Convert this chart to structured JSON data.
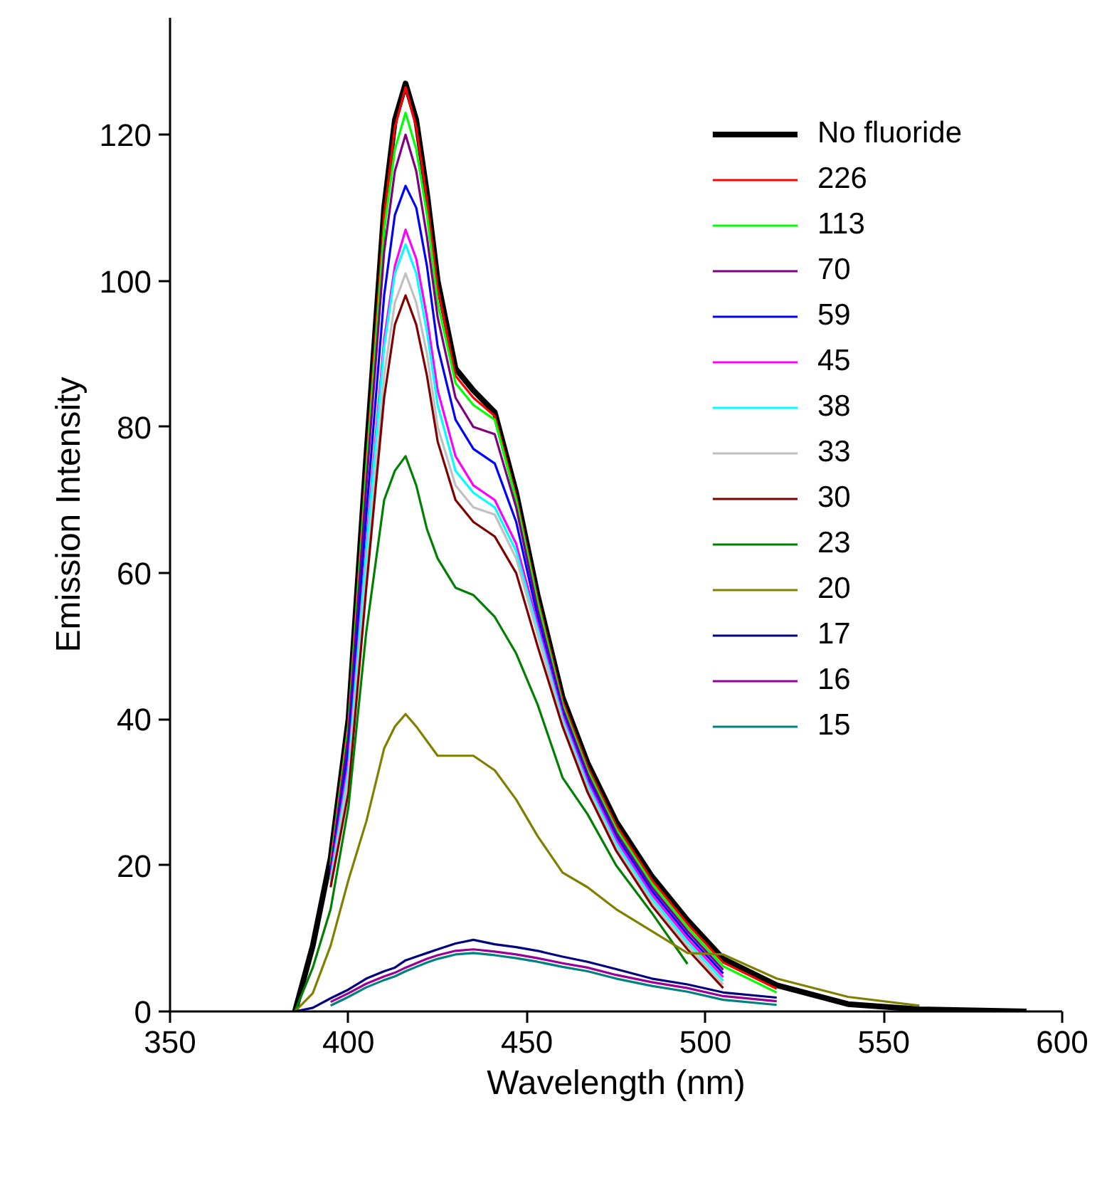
{
  "chart_data": {
    "type": "line",
    "xlabel": "Wavelength (nm)",
    "ylabel": "Emission Intensity",
    "x": [
      385,
      390,
      395,
      400,
      405,
      410,
      413,
      416,
      419,
      422,
      425,
      430,
      435,
      441,
      447,
      453,
      460,
      467,
      475,
      485,
      495,
      505,
      520,
      540,
      560,
      590
    ],
    "xlim": [
      350,
      600
    ],
    "xticks": [
      350,
      400,
      450,
      500,
      550,
      600
    ],
    "ylim": [
      0,
      136
    ],
    "yticks": [
      0,
      20,
      40,
      60,
      80,
      100,
      120
    ],
    "grid": false,
    "legend": "top right",
    "marker": "none",
    "line_style": "solid",
    "series": [
      {
        "name": "No fluoride",
        "color": "#000000",
        "values": [
          0,
          9,
          21,
          40,
          76,
          110,
          122,
          127,
          122,
          112,
          100,
          88,
          85,
          82,
          71,
          57,
          43,
          34,
          26,
          18.5,
          12.5,
          7.2,
          3.6,
          1,
          0.3,
          0
        ]
      },
      {
        "name": "226",
        "color": "#ff0000",
        "values": [
          null,
          null,
          20.5,
          39.5,
          75,
          109,
          121,
          126.5,
          121,
          111,
          99,
          87,
          84,
          81.5,
          70.5,
          56.5,
          42.5,
          33.5,
          25.5,
          18,
          12,
          6.7,
          3.1,
          null,
          null,
          null
        ]
      },
      {
        "name": "113",
        "color": "#00ff00",
        "values": [
          null,
          null,
          20,
          39,
          74,
          107,
          118,
          123,
          118,
          109,
          97,
          86,
          83,
          81,
          70,
          56,
          42,
          33,
          25,
          17.5,
          11.5,
          6.2,
          2.6,
          null,
          null,
          null
        ]
      },
      {
        "name": "70",
        "color": "#800080",
        "values": [
          null,
          null,
          19.5,
          38,
          72,
          104,
          115,
          120,
          115,
          106,
          95,
          84,
          80,
          79,
          69,
          55,
          41.5,
          32.5,
          24.5,
          17,
          11,
          5.7,
          null,
          null,
          null,
          null
        ]
      },
      {
        "name": "59",
        "color": "#0000ff",
        "values": [
          null,
          null,
          19,
          36,
          68,
          98,
          109,
          113,
          110,
          102,
          91,
          81,
          77,
          75,
          67,
          54,
          41,
          32,
          24,
          16.5,
          10.5,
          5.2,
          null,
          null,
          null,
          null
        ]
      },
      {
        "name": "45",
        "color": "#ff00ff",
        "values": [
          null,
          null,
          18.5,
          34,
          64,
          92,
          102,
          107,
          103,
          95,
          85,
          76,
          72,
          70,
          64,
          53,
          40.5,
          31.5,
          23.5,
          16,
          10,
          4.7,
          null,
          null,
          null,
          null
        ]
      },
      {
        "name": "38",
        "color": "#00ffff",
        "values": [
          null,
          null,
          18,
          33,
          63,
          91,
          101,
          105,
          101,
          93,
          83,
          74,
          71,
          69,
          63,
          52.3,
          40,
          31,
          23,
          15.5,
          9.5,
          4.2,
          null,
          null,
          null,
          null
        ]
      },
      {
        "name": "33",
        "color": "#c0c0c0",
        "values": [
          null,
          null,
          17.5,
          32,
          60,
          87,
          97,
          101,
          97,
          90,
          80,
          72,
          69,
          68,
          62,
          51.6,
          39.5,
          30.5,
          22.5,
          15,
          9,
          3.7,
          null,
          null,
          null,
          null
        ]
      },
      {
        "name": "30",
        "color": "#800000",
        "values": [
          null,
          null,
          17,
          30,
          58,
          84,
          94,
          98,
          94,
          87,
          78,
          70,
          67,
          65,
          60,
          50,
          39,
          30,
          22,
          14.5,
          8.5,
          3.2,
          null,
          null,
          null,
          null
        ]
      },
      {
        "name": "23",
        "color": "#008000",
        "values": [
          0,
          6,
          14,
          28,
          52,
          70,
          74,
          76,
          72,
          66,
          62,
          58,
          57,
          54,
          49,
          42,
          32,
          27,
          20,
          13.5,
          6.5,
          null,
          null,
          null,
          null,
          null
        ]
      },
      {
        "name": "20",
        "color": "#808000",
        "values": [
          0,
          2.5,
          9,
          18,
          26,
          36,
          39,
          40.7,
          39,
          37,
          35,
          35,
          35,
          33,
          29,
          24,
          19,
          17,
          14,
          11,
          8,
          7.8,
          4.5,
          2,
          0.8,
          null
        ]
      },
      {
        "name": "17",
        "color": "#000080",
        "values": [
          0,
          0.5,
          1.8,
          3,
          4.5,
          5.5,
          6,
          7,
          7.5,
          8,
          8.5,
          9.3,
          9.8,
          9.2,
          8.8,
          8.3,
          7.5,
          6.8,
          5.8,
          4.5,
          3.7,
          2.6,
          1.9,
          null,
          null,
          null
        ]
      },
      {
        "name": "16",
        "color": "#990099",
        "values": [
          null,
          null,
          1.3,
          2.5,
          3.8,
          4.8,
          5.3,
          6,
          6.6,
          7.2,
          7.7,
          8.3,
          8.5,
          8.2,
          7.8,
          7.3,
          6.6,
          6,
          5,
          4,
          3.2,
          2.1,
          1.4,
          null,
          null,
          null
        ]
      },
      {
        "name": "15",
        "color": "#008080",
        "values": [
          null,
          null,
          0.8,
          2,
          3.3,
          4.3,
          4.8,
          5.5,
          6.1,
          6.7,
          7.2,
          7.8,
          8,
          7.7,
          7.3,
          6.8,
          6.1,
          5.5,
          4.5,
          3.5,
          2.7,
          1.6,
          0.9,
          null,
          null,
          null
        ]
      }
    ]
  }
}
